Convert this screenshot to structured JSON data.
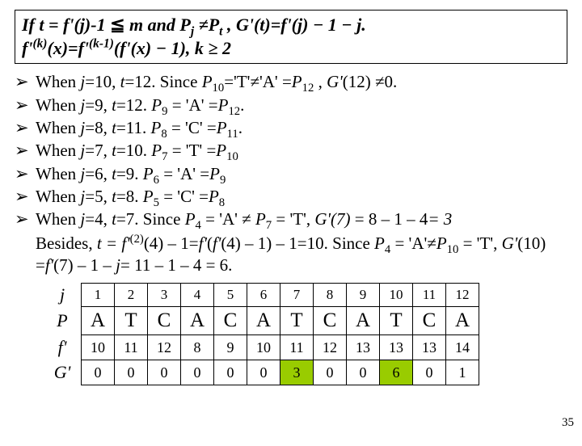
{
  "formula": {
    "line1_html": "If <span class='it'>t = f'(j)</span>-1 <span class='norm'>≦</span> <span class='it'>m</span> and <span class='it'>P<sub>j</sub></span> ≠<span class='it'>P<sub>t</sub></span> , <span class='it'>G'(t)=f'(j)</span> − 1 − <span class='it'>j</span>.",
    "line2_html": "<span class='it'>f'<sup>(k)</sup>(x)=f'<sup>(k-1)</sup>(f'(x)</span> − 1<span class='it'>)</span>, <span class='it'>k</span> ≥ 2"
  },
  "bullets": [
    "When <span class='it'>j</span>=10, <span class='it'>t</span>=12. Since <span class='it'>P</span><sub>10</sub>='T'≠'A' =<span class='it'>P</span><sub>12</sub> , <span class='it'>G'</span>(12) ≠0.",
    "When <span class='it'>j</span>=9, <span class='it'>t</span>=12. <span class='it'>P</span><sub>9</sub> = 'A' =<span class='it'>P</span><sub>12</sub>.",
    "When <span class='it'>j</span>=8, <span class='it'>t</span>=11. <span class='it'>P</span><sub>8</sub> = 'C' =<span class='it'>P</span><sub>11</sub>.",
    "When <span class='it'>j</span>=7, <span class='it'>t</span>=10. <span class='it'>P</span><sub>7</sub> = 'T' =<span class='it'>P</span><sub>10</sub>",
    "When <span class='it'>j</span>=6, <span class='it'>t</span>=9.  <span class='it'>P</span><sub>6</sub> = 'A' =<span class='it'>P</span><sub>9</sub>",
    "When <span class='it'>j</span>=5, <span class='it'>t</span>=8.  <span class='it'>P</span><sub>5</sub> = 'C' =<span class='it'>P</span><sub>8</sub>",
    "When <span class='it'>j</span>=4, <span class='it'>t</span>=7. Since <span class='it'>P</span><sub>4</sub> = 'A' ≠ <span class='it'>P</span><sub>7</sub> = 'T',  <span class='it'>G'(7)</span> = 8 – 1 – 4<span class='it'>= 3</span>"
  ],
  "extra_html": "Besides, <span class='it'>t = f'</span><sup>(2)</sup>(4) – 1=<span class='it'>f'</span>(<span class='it'>f'</span>(4) – 1) – 1=10.  Since <span class='it'>P</span><sub>4</sub> = 'A'≠<span class='it'>P</span><sub>10</sub> = 'T',  <span class='it'>G'</span>(10) =<span class='it'>f'</span>(7) – 1 – <span class='it'>j</span>= 11 – 1 – 4 = 6.",
  "table": {
    "row_labels": [
      "j",
      "P",
      "f'",
      "G'"
    ],
    "j": [
      "1",
      "2",
      "3",
      "4",
      "5",
      "6",
      "7",
      "8",
      "9",
      "10",
      "11",
      "12"
    ],
    "P": [
      "A",
      "T",
      "C",
      "A",
      "C",
      "A",
      "T",
      "C",
      "A",
      "T",
      "C",
      "A"
    ],
    "fp": [
      "10",
      "11",
      "12",
      "8",
      "9",
      "10",
      "11",
      "12",
      "13",
      "13",
      "13",
      "14"
    ],
    "Gp": [
      "0",
      "0",
      "0",
      "0",
      "0",
      "0",
      "3",
      "0",
      "0",
      "6",
      "0",
      "1"
    ],
    "highlight_cols_Gp": [
      7,
      10
    ],
    "highlight_color": "#99cc00"
  },
  "page_number": "35"
}
